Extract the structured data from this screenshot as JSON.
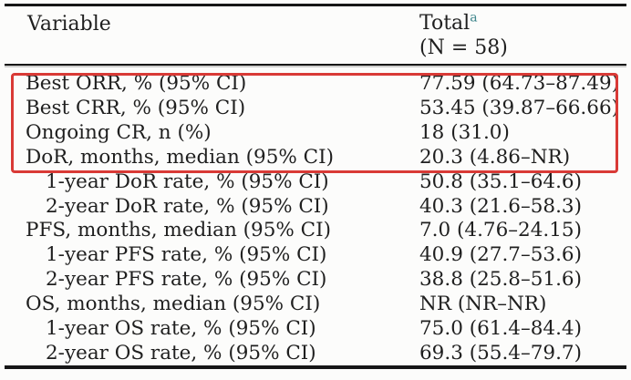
{
  "table": {
    "header": {
      "variable_label": "Variable",
      "total_label": "Total",
      "total_footnote_marker": "a",
      "total_n": "(N = 58)"
    },
    "footnote_marker_color": "#3f868c",
    "highlight_box_color": "#d93a36",
    "text_color": "#1f1f1f",
    "rows": [
      {
        "label": "Best ORR, % (95% CI)",
        "value": "77.59 (64.73–87.49)",
        "indent": false,
        "highlighted": true
      },
      {
        "label": "Best CRR, % (95% CI)",
        "value": "53.45 (39.87–66.66)",
        "indent": false,
        "highlighted": true
      },
      {
        "label": "Ongoing CR, n (%)",
        "value": "18 (31.0)",
        "indent": false,
        "highlighted": true
      },
      {
        "label": "DoR, months, median (95% CI)",
        "value": "20.3 (4.86–NR)",
        "indent": false,
        "highlighted": true
      },
      {
        "label": "1-year DoR rate, % (95% CI)",
        "value": "50.8 (35.1–64.6)",
        "indent": true,
        "highlighted": false
      },
      {
        "label": "2-year DoR rate, % (95% CI)",
        "value": "40.3 (21.6–58.3)",
        "indent": true,
        "highlighted": false
      },
      {
        "label": "PFS, months, median (95% CI)",
        "value": "7.0 (4.76–24.15)",
        "indent": false,
        "highlighted": false
      },
      {
        "label": "1-year PFS rate, % (95% CI)",
        "value": "40.9 (27.7–53.6)",
        "indent": true,
        "highlighted": false
      },
      {
        "label": "2-year PFS rate, % (95% CI)",
        "value": "38.8 (25.8–51.6)",
        "indent": true,
        "highlighted": false
      },
      {
        "label": "OS, months, median (95% CI)",
        "value": "NR (NR–NR)",
        "indent": false,
        "highlighted": false
      },
      {
        "label": "1-year OS rate, % (95% CI)",
        "value": "75.0 (61.4–84.4)",
        "indent": true,
        "highlighted": false
      },
      {
        "label": "2-year OS rate, % (95% CI)",
        "value": "69.3 (55.4–79.7)",
        "indent": true,
        "highlighted": false
      }
    ]
  }
}
